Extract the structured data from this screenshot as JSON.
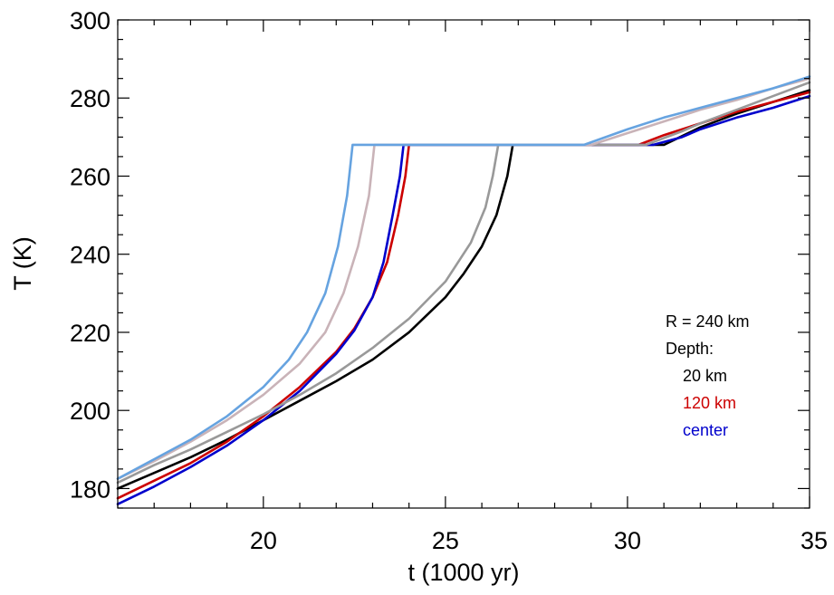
{
  "chart_data": {
    "type": "line",
    "title": "",
    "xlabel": "t (1000 yr)",
    "ylabel": "T (K)",
    "xlim": [
      16,
      35
    ],
    "ylim": [
      175,
      300
    ],
    "xticks": [
      20,
      25,
      30,
      35
    ],
    "yticks": [
      180,
      200,
      220,
      240,
      260,
      280,
      300
    ],
    "x_minor_step": 1,
    "y_minor_step": 5,
    "grid": false,
    "annotations": [
      {
        "text": "R = 240 km",
        "color": "#000000"
      },
      {
        "text": "Depth:",
        "color": "#000000"
      },
      {
        "text": "20 km",
        "color": "#000000"
      },
      {
        "text": "120 km",
        "color": "#cc0000"
      },
      {
        "text": "center",
        "color": "#0000cc"
      }
    ],
    "series": [
      {
        "color": "#000000",
        "points": [
          [
            16,
            180
          ],
          [
            17,
            184
          ],
          [
            18,
            188
          ],
          [
            19,
            192.5
          ],
          [
            20,
            197.5
          ],
          [
            21,
            202.5
          ],
          [
            22,
            207.5
          ],
          [
            23,
            213
          ],
          [
            24,
            220
          ],
          [
            25,
            229
          ],
          [
            25.5,
            235
          ],
          [
            26,
            242
          ],
          [
            26.4,
            250
          ],
          [
            26.7,
            260
          ],
          [
            26.85,
            268
          ],
          [
            31,
            268
          ],
          [
            32,
            272.5
          ],
          [
            33,
            276
          ],
          [
            34,
            279
          ],
          [
            35,
            282
          ]
        ]
      },
      {
        "color": "#cc0000",
        "points": [
          [
            16,
            177.5
          ],
          [
            17,
            182
          ],
          [
            18,
            186.5
          ],
          [
            19,
            192
          ],
          [
            20,
            198.5
          ],
          [
            21,
            206
          ],
          [
            22,
            215
          ],
          [
            22.5,
            221
          ],
          [
            23,
            229
          ],
          [
            23.4,
            238
          ],
          [
            23.7,
            250
          ],
          [
            23.9,
            260
          ],
          [
            24,
            268
          ],
          [
            30.3,
            268
          ],
          [
            31,
            270.5
          ],
          [
            32,
            273.5
          ],
          [
            33,
            276.5
          ],
          [
            34,
            279
          ],
          [
            35,
            281.5
          ]
        ]
      },
      {
        "color": "#0000cc",
        "points": [
          [
            16,
            176
          ],
          [
            17,
            180.5
          ],
          [
            18,
            185.5
          ],
          [
            19,
            191
          ],
          [
            20,
            197.5
          ],
          [
            21,
            205
          ],
          [
            22,
            214.5
          ],
          [
            22.5,
            220.5
          ],
          [
            23,
            229
          ],
          [
            23.3,
            238
          ],
          [
            23.55,
            250
          ],
          [
            23.75,
            260
          ],
          [
            23.85,
            268
          ],
          [
            30.7,
            268
          ],
          [
            31.5,
            270
          ],
          [
            32,
            272
          ],
          [
            33,
            275
          ],
          [
            34,
            277.5
          ],
          [
            35,
            280.5
          ]
        ]
      },
      {
        "color": "#999999",
        "points": [
          [
            16,
            181.5
          ],
          [
            17,
            186
          ],
          [
            18,
            190
          ],
          [
            19,
            194.5
          ],
          [
            20,
            199
          ],
          [
            21,
            204
          ],
          [
            22,
            209.5
          ],
          [
            23,
            216
          ],
          [
            24,
            223.5
          ],
          [
            25,
            233
          ],
          [
            25.7,
            243
          ],
          [
            26.1,
            252
          ],
          [
            26.3,
            260
          ],
          [
            26.45,
            268
          ],
          [
            30.5,
            268
          ],
          [
            31.5,
            271.5
          ],
          [
            32,
            273.5
          ],
          [
            33,
            277
          ],
          [
            34,
            280.5
          ],
          [
            35,
            284
          ]
        ]
      },
      {
        "color": "#c9b3b8",
        "points": [
          [
            16,
            182.5
          ],
          [
            17,
            187
          ],
          [
            18,
            192
          ],
          [
            19,
            197.5
          ],
          [
            20,
            204
          ],
          [
            21,
            212
          ],
          [
            21.7,
            220
          ],
          [
            22.2,
            230
          ],
          [
            22.6,
            242
          ],
          [
            22.9,
            255
          ],
          [
            23.05,
            268
          ],
          [
            29,
            268
          ],
          [
            30,
            271
          ],
          [
            31,
            274
          ],
          [
            32,
            277
          ],
          [
            33,
            279.5
          ],
          [
            34,
            282.5
          ],
          [
            35,
            285
          ]
        ]
      },
      {
        "color": "#66a3e0",
        "points": [
          [
            16,
            182.5
          ],
          [
            17,
            187.5
          ],
          [
            18,
            192.5
          ],
          [
            19,
            198.5
          ],
          [
            20,
            206
          ],
          [
            20.7,
            213
          ],
          [
            21.2,
            220
          ],
          [
            21.7,
            230
          ],
          [
            22.05,
            242
          ],
          [
            22.3,
            255
          ],
          [
            22.45,
            268
          ],
          [
            28.8,
            268
          ],
          [
            30,
            272
          ],
          [
            31,
            275
          ],
          [
            32,
            277.5
          ],
          [
            33,
            280
          ],
          [
            34,
            282.5
          ],
          [
            35,
            285.5
          ]
        ]
      }
    ]
  }
}
